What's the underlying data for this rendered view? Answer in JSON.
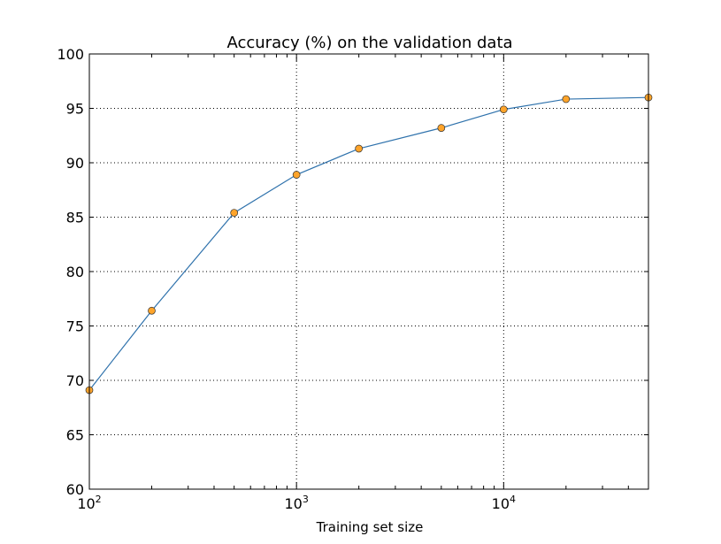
{
  "chart_data": {
    "type": "line",
    "title": "Accuracy (%) on the validation data",
    "xlabel": "Training set size",
    "ylabel": "",
    "xscale": "log",
    "xlim": [
      100,
      50000
    ],
    "ylim": [
      60,
      100
    ],
    "x_ticks": [
      100,
      1000,
      10000
    ],
    "x_tick_labels": [
      {
        "base": "10",
        "exp": "2"
      },
      {
        "base": "10",
        "exp": "3"
      },
      {
        "base": "10",
        "exp": "4"
      }
    ],
    "y_ticks": [
      60,
      65,
      70,
      75,
      80,
      85,
      90,
      95,
      100
    ],
    "grid": true,
    "series": [
      {
        "x": [
          100,
          200,
          500,
          1000,
          2000,
          5000,
          10000,
          20000,
          50000
        ],
        "y": [
          69.1,
          76.4,
          85.4,
          88.9,
          91.3,
          93.2,
          94.9,
          95.85,
          96.0
        ],
        "line_color": "#2f72ac",
        "marker": "circle",
        "marker_color": "#ffa42a"
      }
    ]
  }
}
